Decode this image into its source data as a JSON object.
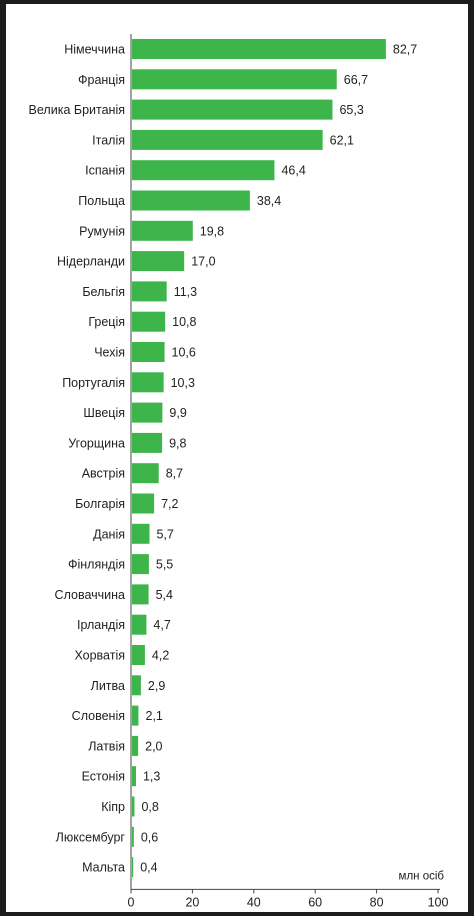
{
  "chart_data": {
    "type": "bar",
    "orientation": "horizontal",
    "title": "",
    "xlabel": "млн осіб",
    "ylabel": "",
    "xlim": [
      0,
      100
    ],
    "xticks": [
      "0",
      "20",
      "40",
      "60",
      "80",
      "100"
    ],
    "grid": false,
    "bar_color": "#3db54a",
    "categories": [
      "Німеччина",
      "Франція",
      "Велика Британія",
      "Італія",
      "Іспанія",
      "Польща",
      "Румунія",
      "Нідерланди",
      "Бельгія",
      "Греція",
      "Чехія",
      "Португалія",
      "Швеція",
      "Угорщина",
      "Австрія",
      "Болгарія",
      "Данія",
      "Фінляндія",
      "Словаччина",
      "Ірландія",
      "Хорватія",
      "Литва",
      "Словенія",
      "Латвія",
      "Естонія",
      "Кіпр",
      "Люксембург",
      "Мальта"
    ],
    "values": [
      82.7,
      66.7,
      65.3,
      62.1,
      46.4,
      38.4,
      19.8,
      17.0,
      11.3,
      10.8,
      10.6,
      10.3,
      9.9,
      9.8,
      8.7,
      7.2,
      5.7,
      5.5,
      5.4,
      4.7,
      4.2,
      2.9,
      2.1,
      2.0,
      1.3,
      0.8,
      0.6,
      0.4
    ],
    "value_labels": [
      "82,7",
      "66,7",
      "65,3",
      "62,1",
      "46,4",
      "38,4",
      "19,8",
      "17,0",
      "11,3",
      "10,8",
      "10,6",
      "10,3",
      "9,9",
      "9,8",
      "8,7",
      "7,2",
      "5,7",
      "5,5",
      "5,4",
      "4,7",
      "4,2",
      "2,9",
      "2,1",
      "2,0",
      "1,3",
      "0,8",
      "0,6",
      "0,4"
    ]
  }
}
